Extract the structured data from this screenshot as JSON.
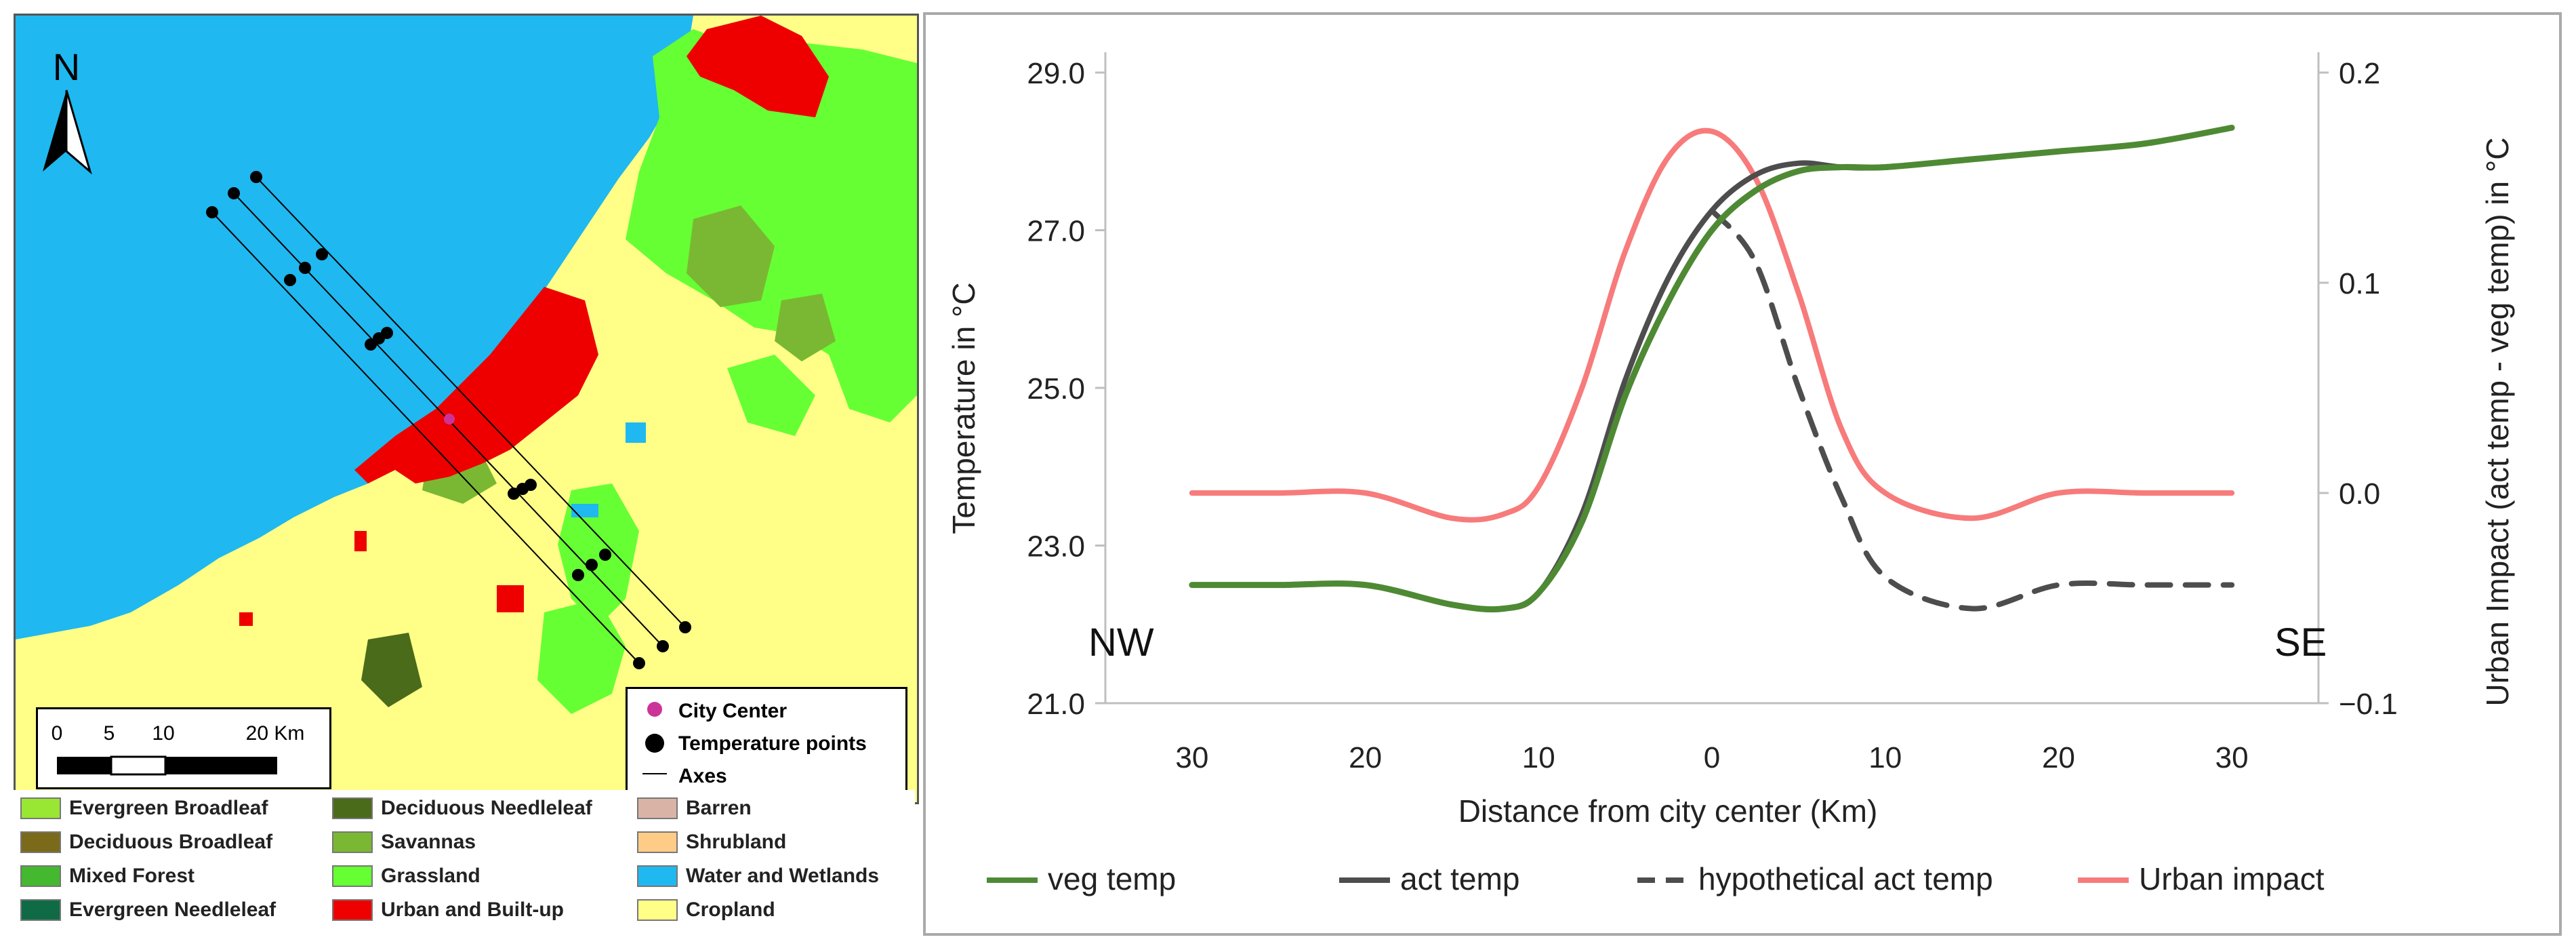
{
  "map": {
    "north_label": "N",
    "scale": {
      "ticks": [
        "0",
        "5",
        "10",
        "20 Km"
      ]
    },
    "legend": [
      {
        "label": "City Center",
        "color": "#cc3399",
        "icon": "dot-icon"
      },
      {
        "label": "Temperature points",
        "color": "#000000",
        "icon": "dot-icon"
      },
      {
        "label": "Axes",
        "color": "#000000",
        "icon": "line-icon"
      }
    ]
  },
  "landcover_legend": [
    {
      "label": "Evergreen Broadleaf",
      "color": "#99e633"
    },
    {
      "label": "Deciduous Broadleaf",
      "color": "#7a6a1a"
    },
    {
      "label": "Mixed Forest",
      "color": "#44b82e"
    },
    {
      "label": "Evergreen Needleleaf",
      "color": "#0f6b45"
    },
    {
      "label": "Deciduous Needleleaf",
      "color": "#4a6b1a"
    },
    {
      "label": "Savannas",
      "color": "#7ab833"
    },
    {
      "label": "Grassland",
      "color": "#66ff33"
    },
    {
      "label": "Urban and Built-up",
      "color": "#ee0000"
    },
    {
      "label": "Barren",
      "color": "#d9b3a6"
    },
    {
      "label": "Shrubland",
      "color": "#ffcc88"
    },
    {
      "label": "Water and Wetlands",
      "color": "#1fb8f0"
    },
    {
      "label": "Cropland",
      "color": "#ffff88"
    }
  ],
  "chart_data": {
    "type": "line",
    "xlabel": "Distance from city center (Km)",
    "ylabel_left": "Temperature in °C",
    "ylabel_right": "Urban Impact (act temp - veg temp)  in °C",
    "x": [
      -30,
      -25,
      -20,
      -15,
      -12,
      -10,
      -7.5,
      -5,
      -2.5,
      0,
      2.5,
      5,
      7.5,
      10,
      15,
      20,
      25,
      30
    ],
    "x_tick_values": [
      -30,
      -20,
      -10,
      0,
      10,
      20,
      30
    ],
    "x_tick_labels": [
      "30",
      "20",
      "10",
      "0",
      "10",
      "20",
      "30"
    ],
    "xlim": [
      -35,
      35
    ],
    "ylim_left": [
      21.0,
      29.0
    ],
    "y_tick_labels_left": [
      "21.0",
      "23.0",
      "25.0",
      "27.0",
      "29.0"
    ],
    "ylim_right": [
      -0.1,
      0.2
    ],
    "y_tick_labels_right": [
      "−0.1",
      "0.0",
      "0.1",
      "0.2"
    ],
    "direction_labels": {
      "left": "NW",
      "right": "SE"
    },
    "series": [
      {
        "name": "veg temp",
        "axis": "left",
        "color": "#4e8a34",
        "dash": "solid",
        "values": [
          22.5,
          22.5,
          22.5,
          22.25,
          22.2,
          22.4,
          23.3,
          24.9,
          26.1,
          27.0,
          27.5,
          27.75,
          27.8,
          27.8,
          27.9,
          28.0,
          28.1,
          28.3
        ]
      },
      {
        "name": "act temp",
        "axis": "left",
        "color": "#4d4d4d",
        "dash": "solid",
        "values": [
          22.5,
          22.5,
          22.5,
          22.25,
          22.2,
          22.4,
          23.4,
          25.1,
          26.4,
          27.25,
          27.7,
          27.85,
          27.8,
          27.8,
          27.9,
          28.0,
          28.1,
          28.3
        ]
      },
      {
        "name": "hypothetical act temp",
        "axis": "left",
        "color": "#4d4d4d",
        "dash": "dashed",
        "values": [
          null,
          null,
          null,
          null,
          null,
          null,
          null,
          null,
          null,
          27.25,
          26.6,
          25.0,
          23.6,
          22.6,
          22.2,
          22.5,
          22.5,
          22.5
        ]
      },
      {
        "name": "Urban impact",
        "axis": "right",
        "color": "#f77b7b",
        "dash": "solid",
        "values": [
          0.0,
          0.0,
          0.0,
          -0.012,
          -0.01,
          0.003,
          0.05,
          0.115,
          0.16,
          0.172,
          0.15,
          0.095,
          0.03,
          0.0,
          -0.012,
          0.0,
          0.0,
          0.0
        ]
      }
    ]
  }
}
